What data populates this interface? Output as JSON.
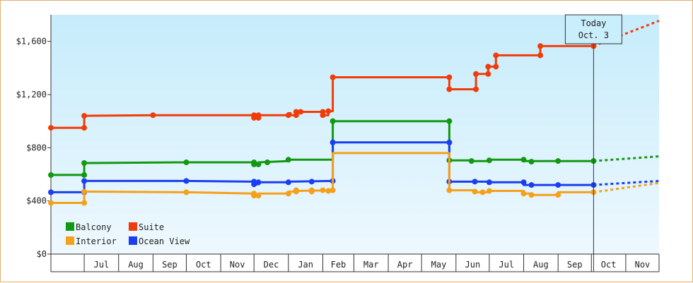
{
  "chart_data": {
    "type": "line",
    "title": "",
    "xlabel": "",
    "ylabel": "",
    "ylim": [
      0,
      1800
    ],
    "y_ticks": [
      0,
      400,
      800,
      1200,
      1600
    ],
    "y_tick_labels": [
      "$0",
      "$400",
      "$800",
      "$1,200",
      "$1,600"
    ],
    "x_range": [
      "2012-06-01",
      "2013-12-01"
    ],
    "months": [
      {
        "label": "Jul",
        "date": "2012-07-01"
      },
      {
        "label": "Aug",
        "date": "2012-08-01"
      },
      {
        "label": "Sep",
        "date": "2012-09-01"
      },
      {
        "label": "Oct",
        "date": "2012-10-01"
      },
      {
        "label": "Nov",
        "date": "2012-11-01"
      },
      {
        "label": "Dec",
        "date": "2012-12-01"
      },
      {
        "label": "Jan",
        "date": "2013-01-01"
      },
      {
        "label": "Feb",
        "date": "2013-02-01"
      },
      {
        "label": "Mar",
        "date": "2013-03-01"
      },
      {
        "label": "Apr",
        "date": "2013-04-01"
      },
      {
        "label": "May",
        "date": "2013-05-01"
      },
      {
        "label": "Jun",
        "date": "2013-06-01"
      },
      {
        "label": "Jul",
        "date": "2013-07-01"
      },
      {
        "label": "Aug",
        "date": "2013-08-01"
      },
      {
        "label": "Sep",
        "date": "2013-09-01"
      },
      {
        "label": "Oct",
        "date": "2013-10-01"
      },
      {
        "label": "Nov",
        "date": "2013-11-01"
      }
    ],
    "today": {
      "date": "2013-10-03",
      "line1": "Today",
      "line2": "Oct. 3"
    },
    "forecast_end": "2013-12-01",
    "grid": false,
    "legend_position": "bottom-left",
    "series": [
      {
        "name": "Suite",
        "color": "#f03c0a",
        "points": [
          [
            "2012-06-01",
            950
          ],
          [
            "2012-07-01",
            950
          ],
          [
            "2012-07-01",
            1040
          ],
          [
            "2012-09-01",
            1045
          ],
          [
            "2012-12-01",
            1045
          ],
          [
            "2012-12-01",
            1025
          ],
          [
            "2012-12-05",
            1025
          ],
          [
            "2012-12-05",
            1045
          ],
          [
            "2013-01-01",
            1045
          ],
          [
            "2013-01-01",
            1060
          ],
          [
            "2013-01-03",
            1060
          ],
          [
            "2013-01-03",
            1045
          ],
          [
            "2013-01-08",
            1045
          ],
          [
            "2013-01-08",
            1070
          ],
          [
            "2013-01-12",
            1070
          ],
          [
            "2013-02-01",
            1070
          ],
          [
            "2013-02-01",
            1045
          ],
          [
            "2013-02-06",
            1045
          ],
          [
            "2013-02-06",
            1075
          ],
          [
            "2013-02-10",
            1075
          ],
          [
            "2013-02-10",
            1330
          ],
          [
            "2013-05-26",
            1330
          ],
          [
            "2013-05-26",
            1240
          ],
          [
            "2013-06-19",
            1240
          ],
          [
            "2013-06-19",
            1355
          ],
          [
            "2013-06-30",
            1355
          ],
          [
            "2013-06-30",
            1410
          ],
          [
            "2013-07-07",
            1410
          ],
          [
            "2013-07-07",
            1495
          ],
          [
            "2013-08-16",
            1495
          ],
          [
            "2013-08-16",
            1565
          ],
          [
            "2013-10-03",
            1565
          ]
        ],
        "markers": [
          [
            "2012-06-01",
            950
          ],
          [
            "2012-07-01",
            950
          ],
          [
            "2012-07-01",
            1040
          ],
          [
            "2012-09-01",
            1045
          ],
          [
            "2012-12-01",
            1045
          ],
          [
            "2012-12-01",
            1025
          ],
          [
            "2012-12-05",
            1025
          ],
          [
            "2012-12-05",
            1045
          ],
          [
            "2013-01-01",
            1045
          ],
          [
            "2013-01-08",
            1045
          ],
          [
            "2013-01-08",
            1070
          ],
          [
            "2013-01-12",
            1070
          ],
          [
            "2013-02-01",
            1070
          ],
          [
            "2013-02-01",
            1045
          ],
          [
            "2013-02-06",
            1075
          ],
          [
            "2013-02-10",
            1330
          ],
          [
            "2013-05-26",
            1330
          ],
          [
            "2013-05-26",
            1240
          ],
          [
            "2013-06-19",
            1240
          ],
          [
            "2013-06-19",
            1355
          ],
          [
            "2013-06-30",
            1355
          ],
          [
            "2013-06-30",
            1410
          ],
          [
            "2013-07-07",
            1410
          ],
          [
            "2013-07-07",
            1495
          ],
          [
            "2013-08-16",
            1495
          ],
          [
            "2013-08-16",
            1565
          ],
          [
            "2013-10-03",
            1565
          ]
        ],
        "forecast_value": 1755
      },
      {
        "name": "Balcony",
        "color": "#119911",
        "points": [
          [
            "2012-06-01",
            595
          ],
          [
            "2012-07-01",
            595
          ],
          [
            "2012-07-01",
            685
          ],
          [
            "2012-10-01",
            690
          ],
          [
            "2012-12-01",
            690
          ],
          [
            "2012-12-01",
            675
          ],
          [
            "2012-12-05",
            675
          ],
          [
            "2012-12-05",
            690
          ],
          [
            "2013-01-01",
            700
          ],
          [
            "2013-01-01",
            710
          ],
          [
            "2013-02-10",
            710
          ],
          [
            "2013-02-10",
            1000
          ],
          [
            "2013-05-26",
            1000
          ],
          [
            "2013-05-26",
            705
          ],
          [
            "2013-06-15",
            705
          ],
          [
            "2013-06-15",
            700
          ],
          [
            "2013-07-01",
            700
          ],
          [
            "2013-07-01",
            710
          ],
          [
            "2013-08-01",
            710
          ],
          [
            "2013-08-01",
            700
          ],
          [
            "2013-09-01",
            700
          ],
          [
            "2013-10-03",
            700
          ]
        ],
        "markers": [
          [
            "2012-06-01",
            595
          ],
          [
            "2012-07-01",
            595
          ],
          [
            "2012-07-01",
            685
          ],
          [
            "2012-10-01",
            690
          ],
          [
            "2012-12-01",
            690
          ],
          [
            "2012-12-01",
            675
          ],
          [
            "2012-12-05",
            675
          ],
          [
            "2012-12-13",
            690
          ],
          [
            "2013-01-01",
            710
          ],
          [
            "2013-02-10",
            1000
          ],
          [
            "2013-05-26",
            1000
          ],
          [
            "2013-05-26",
            705
          ],
          [
            "2013-06-15",
            700
          ],
          [
            "2013-07-01",
            705
          ],
          [
            "2013-08-01",
            710
          ],
          [
            "2013-08-08",
            695
          ],
          [
            "2013-09-01",
            700
          ],
          [
            "2013-10-03",
            700
          ]
        ],
        "forecast_value": 735
      },
      {
        "name": "Ocean View",
        "color": "#1a3ef0",
        "points": [
          [
            "2012-06-01",
            465
          ],
          [
            "2012-07-01",
            465
          ],
          [
            "2012-07-01",
            550
          ],
          [
            "2012-10-01",
            550
          ],
          [
            "2012-12-01",
            545
          ],
          [
            "2012-12-01",
            525
          ],
          [
            "2012-12-05",
            525
          ],
          [
            "2012-12-05",
            540
          ],
          [
            "2013-01-01",
            540
          ],
          [
            "2013-01-01",
            545
          ],
          [
            "2013-02-10",
            550
          ],
          [
            "2013-02-10",
            840
          ],
          [
            "2013-05-26",
            840
          ],
          [
            "2013-05-26",
            545
          ],
          [
            "2013-07-01",
            545
          ],
          [
            "2013-07-01",
            540
          ],
          [
            "2013-08-01",
            540
          ],
          [
            "2013-08-01",
            520
          ],
          [
            "2013-09-01",
            520
          ],
          [
            "2013-10-03",
            520
          ]
        ],
        "markers": [
          [
            "2012-06-01",
            465
          ],
          [
            "2012-07-01",
            465
          ],
          [
            "2012-07-01",
            550
          ],
          [
            "2012-10-01",
            550
          ],
          [
            "2012-12-01",
            545
          ],
          [
            "2012-12-01",
            525
          ],
          [
            "2012-12-05",
            540
          ],
          [
            "2013-01-01",
            540
          ],
          [
            "2013-01-22",
            545
          ],
          [
            "2013-02-10",
            550
          ],
          [
            "2013-02-10",
            840
          ],
          [
            "2013-05-26",
            840
          ],
          [
            "2013-05-26",
            545
          ],
          [
            "2013-06-18",
            545
          ],
          [
            "2013-07-01",
            540
          ],
          [
            "2013-08-01",
            540
          ],
          [
            "2013-08-08",
            520
          ],
          [
            "2013-09-01",
            520
          ],
          [
            "2013-10-03",
            520
          ]
        ],
        "forecast_value": 550
      },
      {
        "name": "Interior",
        "color": "#f5a01a",
        "points": [
          [
            "2012-06-01",
            385
          ],
          [
            "2012-07-01",
            385
          ],
          [
            "2012-07-01",
            470
          ],
          [
            "2012-10-01",
            465
          ],
          [
            "2012-12-01",
            455
          ],
          [
            "2012-12-01",
            440
          ],
          [
            "2012-12-05",
            440
          ],
          [
            "2012-12-05",
            455
          ],
          [
            "2013-01-01",
            455
          ],
          [
            "2013-01-01",
            470
          ],
          [
            "2013-01-08",
            470
          ],
          [
            "2013-01-08",
            475
          ],
          [
            "2013-02-10",
            480
          ],
          [
            "2013-02-10",
            760
          ],
          [
            "2013-05-26",
            760
          ],
          [
            "2013-05-26",
            480
          ],
          [
            "2013-06-18",
            480
          ],
          [
            "2013-06-18",
            465
          ],
          [
            "2013-07-01",
            465
          ],
          [
            "2013-07-01",
            475
          ],
          [
            "2013-08-01",
            475
          ],
          [
            "2013-08-01",
            455
          ],
          [
            "2013-08-08",
            455
          ],
          [
            "2013-08-08",
            445
          ],
          [
            "2013-09-01",
            445
          ],
          [
            "2013-09-01",
            465
          ],
          [
            "2013-10-03",
            465
          ]
        ],
        "markers": [
          [
            "2012-06-01",
            385
          ],
          [
            "2012-07-01",
            385
          ],
          [
            "2012-07-01",
            470
          ],
          [
            "2012-10-01",
            465
          ],
          [
            "2012-12-01",
            455
          ],
          [
            "2012-12-01",
            440
          ],
          [
            "2012-12-05",
            440
          ],
          [
            "2013-01-01",
            455
          ],
          [
            "2013-01-08",
            470
          ],
          [
            "2013-01-08",
            480
          ],
          [
            "2013-01-22",
            470
          ],
          [
            "2013-01-22",
            480
          ],
          [
            "2013-02-01",
            480
          ],
          [
            "2013-02-06",
            475
          ],
          [
            "2013-02-10",
            480
          ],
          [
            "2013-05-26",
            480
          ],
          [
            "2013-06-18",
            470
          ],
          [
            "2013-06-25",
            465
          ],
          [
            "2013-07-01",
            475
          ],
          [
            "2013-08-01",
            455
          ],
          [
            "2013-08-08",
            445
          ],
          [
            "2013-09-01",
            445
          ],
          [
            "2013-10-03",
            465
          ]
        ],
        "forecast_value": 535
      }
    ],
    "legend": [
      {
        "name": "Balcony",
        "color": "#119911"
      },
      {
        "name": "Suite",
        "color": "#f03c0a"
      },
      {
        "name": "Interior",
        "color": "#f5a01a"
      },
      {
        "name": "Ocean View",
        "color": "#1a3ef0"
      }
    ]
  }
}
